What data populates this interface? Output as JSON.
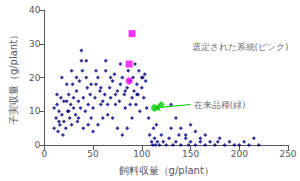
{
  "chart_data": {
    "type": "scatter",
    "xlabel": "飼料収量（g/plant）",
    "ylabel": "子実収量（g/plant）",
    "xlim": [
      0,
      250
    ],
    "ylim": [
      0,
      40
    ],
    "xticks": [
      0,
      50,
      100,
      150,
      200,
      250
    ],
    "yticks": [
      0,
      10,
      20,
      30,
      40
    ],
    "grid": false,
    "series": [
      {
        "color": "#000080",
        "marker": "diamond",
        "x": [
          10,
          12,
          13,
          14,
          15,
          16,
          17,
          18,
          19,
          20,
          22,
          23,
          24,
          25,
          26,
          27,
          28,
          29,
          30,
          32,
          33,
          34,
          35,
          36,
          37,
          38,
          39,
          40,
          42,
          43,
          44,
          45,
          47,
          48,
          50,
          52,
          53,
          55,
          57,
          58,
          60,
          62,
          63,
          65,
          67,
          68,
          70,
          72,
          73,
          75,
          77,
          78,
          80,
          82,
          83,
          85,
          86,
          88,
          90,
          91,
          92,
          93,
          94,
          95,
          96,
          97,
          98,
          100,
          101,
          102,
          103,
          104,
          105,
          107,
          108,
          110,
          111,
          112,
          113,
          114,
          115,
          116,
          118,
          120,
          122,
          125,
          128,
          130,
          132,
          135,
          138,
          140,
          145,
          148,
          150,
          155,
          160,
          165,
          170,
          175,
          178,
          180,
          185,
          190,
          195,
          200,
          205,
          210,
          215,
          220,
          130,
          135,
          140,
          145,
          150,
          155,
          160,
          165,
          100,
          95,
          90,
          85,
          80,
          75,
          70,
          65,
          60,
          55,
          50,
          45,
          40,
          35,
          30,
          25,
          20,
          15,
          10,
          13,
          18,
          23,
          28,
          33,
          38,
          43,
          48,
          53,
          58,
          63,
          68,
          73,
          78,
          83,
          88
        ],
        "values": [
          5,
          8,
          12,
          4,
          10,
          6,
          14,
          9,
          3,
          7,
          5,
          13,
          10,
          15,
          8,
          12,
          6,
          18,
          11,
          9,
          16,
          7,
          13,
          19,
          11,
          25,
          22,
          14,
          10,
          20,
          17,
          12,
          15,
          8,
          11,
          14,
          18,
          20,
          16,
          12,
          13,
          15,
          22,
          9,
          17,
          14,
          19,
          21,
          12,
          16,
          13,
          18,
          20,
          15,
          11,
          17,
          22,
          19,
          14,
          20,
          16,
          24,
          12,
          18,
          15,
          22,
          10,
          17,
          20,
          14,
          21,
          19,
          11,
          8,
          3,
          1,
          0,
          5,
          2,
          0,
          6,
          1,
          0,
          3,
          1,
          0,
          2,
          5,
          0,
          1,
          3,
          0,
          2,
          0,
          1,
          0,
          2,
          0,
          1,
          0,
          1,
          2,
          0,
          1,
          0,
          0,
          1,
          0,
          2,
          0,
          12,
          8,
          5,
          3,
          6,
          4,
          1,
          3,
          20,
          15,
          8,
          5,
          3,
          5,
          8,
          12,
          8,
          6,
          4,
          6,
          5,
          8,
          14,
          10,
          13,
          7,
          11,
          15,
          20,
          18,
          22,
          20,
          28,
          25,
          18,
          22,
          17,
          25,
          20,
          15,
          24,
          16,
          12
        ]
      },
      {
        "color": "#FF00FF",
        "marker": "square",
        "x": [
          90,
          87
        ],
        "values": [
          33,
          24
        ]
      },
      {
        "color": "#FF00FF",
        "marker": "circle",
        "x": [
          87
        ],
        "values": [
          19
        ]
      },
      {
        "color": "#00CC00",
        "marker": "circle",
        "x": [
          113
        ],
        "values": [
          11
        ]
      },
      {
        "color": "#00CC00",
        "marker": "diamond",
        "x": [
          120
        ],
        "values": [
          12
        ]
      }
    ],
    "annotations": [
      {
        "text": "在来品種(緑)",
        "x": 150,
        "y": 12,
        "arrow_to": [
          113,
          11
        ],
        "color": "#00CC00"
      },
      {
        "text": "選定された系統(ピンク)",
        "x": 148,
        "y": 29
      }
    ]
  }
}
